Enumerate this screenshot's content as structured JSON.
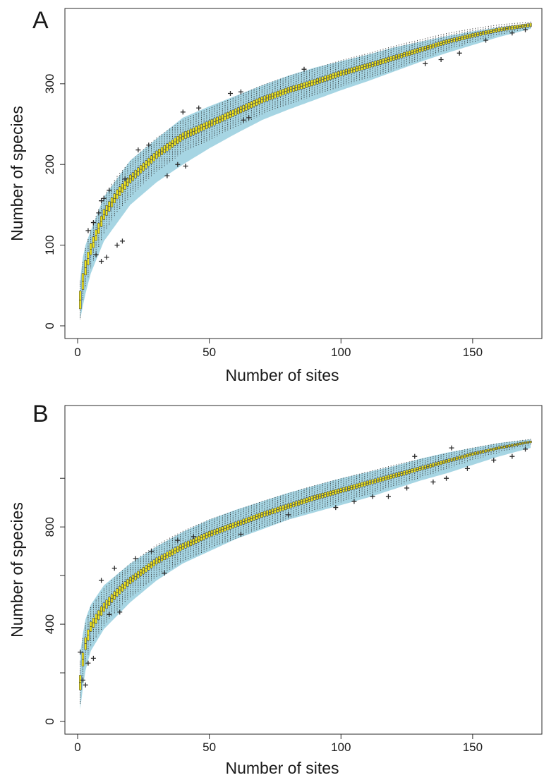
{
  "chart_data": [
    {
      "panel": "A",
      "type": "box",
      "xlabel": "Number of sites",
      "ylabel": "Number of species",
      "xlim": [
        0,
        172
      ],
      "ylim": [
        0,
        375
      ],
      "x_ticks": [
        0,
        50,
        100,
        150
      ],
      "y_ticks": [
        0,
        100,
        200,
        300
      ],
      "x_tick_labels": [
        "0",
        "50",
        "100",
        "150"
      ],
      "y_tick_labels": [
        "0",
        "100",
        "200",
        "300"
      ],
      "n_sites": 172,
      "median_at": [
        [
          1,
          32
        ],
        [
          2,
          55
        ],
        [
          3,
          72
        ],
        [
          5,
          95
        ],
        [
          10,
          138
        ],
        [
          15,
          163
        ],
        [
          20,
          182
        ],
        [
          30,
          212
        ],
        [
          40,
          235
        ],
        [
          50,
          250
        ],
        [
          60,
          265
        ],
        [
          70,
          280
        ],
        [
          80,
          292
        ],
        [
          90,
          302
        ],
        [
          100,
          313
        ],
        [
          110,
          322
        ],
        [
          120,
          332
        ],
        [
          130,
          342
        ],
        [
          140,
          352
        ],
        [
          150,
          360
        ],
        [
          160,
          367
        ],
        [
          172,
          373
        ]
      ],
      "envelope_upper": [
        [
          1,
          58
        ],
        [
          2,
          85
        ],
        [
          3,
          100
        ],
        [
          5,
          118
        ],
        [
          10,
          160
        ],
        [
          20,
          205
        ],
        [
          30,
          232
        ],
        [
          40,
          258
        ],
        [
          50,
          272
        ],
        [
          60,
          285
        ],
        [
          70,
          298
        ],
        [
          80,
          310
        ],
        [
          90,
          320
        ],
        [
          100,
          328
        ],
        [
          110,
          336
        ],
        [
          120,
          345
        ],
        [
          130,
          352
        ],
        [
          140,
          359
        ],
        [
          150,
          365
        ],
        [
          160,
          370
        ],
        [
          172,
          375
        ]
      ],
      "envelope_lower": [
        [
          1,
          8
        ],
        [
          2,
          25
        ],
        [
          3,
          40
        ],
        [
          5,
          65
        ],
        [
          10,
          105
        ],
        [
          20,
          150
        ],
        [
          30,
          178
        ],
        [
          40,
          200
        ],
        [
          50,
          220
        ],
        [
          60,
          238
        ],
        [
          70,
          255
        ],
        [
          80,
          268
        ],
        [
          90,
          280
        ],
        [
          100,
          292
        ],
        [
          110,
          303
        ],
        [
          120,
          315
        ],
        [
          130,
          327
        ],
        [
          140,
          338
        ],
        [
          150,
          348
        ],
        [
          160,
          358
        ],
        [
          172,
          368
        ]
      ],
      "iqr_halfwidth": [
        [
          1,
          11
        ],
        [
          5,
          7
        ],
        [
          20,
          5
        ],
        [
          60,
          4
        ],
        [
          120,
          3
        ],
        [
          172,
          2
        ]
      ],
      "whisker_halfwidth": [
        [
          1,
          24
        ],
        [
          5,
          24
        ],
        [
          20,
          22
        ],
        [
          60,
          19
        ],
        [
          120,
          15
        ],
        [
          172,
          4
        ]
      ],
      "outliers": [
        [
          4,
          118
        ],
        [
          6,
          128
        ],
        [
          8,
          140
        ],
        [
          9,
          155
        ],
        [
          10,
          158
        ],
        [
          12,
          168
        ],
        [
          18,
          182
        ],
        [
          23,
          218
        ],
        [
          27,
          224
        ],
        [
          40,
          265
        ],
        [
          46,
          270
        ],
        [
          58,
          288
        ],
        [
          62,
          290
        ],
        [
          86,
          318
        ],
        [
          7,
          88
        ],
        [
          9,
          80
        ],
        [
          11,
          85
        ],
        [
          15,
          100
        ],
        [
          17,
          105
        ],
        [
          34,
          186
        ],
        [
          38,
          200
        ],
        [
          41,
          198
        ],
        [
          63,
          255
        ],
        [
          65,
          258
        ],
        [
          132,
          325
        ],
        [
          138,
          330
        ],
        [
          145,
          338
        ],
        [
          155,
          354
        ],
        [
          165,
          363
        ],
        [
          170,
          367
        ]
      ]
    },
    {
      "panel": "B",
      "type": "box",
      "xlabel": "Number of sites",
      "ylabel": "Number of species",
      "xlim": [
        0,
        172
      ],
      "ylim": [
        0,
        1250
      ],
      "x_ticks": [
        0,
        50,
        100,
        150
      ],
      "y_ticks": [
        0,
        400,
        800
      ],
      "x_tick_labels": [
        "0",
        "50",
        "100",
        "150"
      ],
      "y_tick_labels": [
        "0",
        "400",
        "800"
      ],
      "n_sites": 172,
      "median_at": [
        [
          1,
          160
        ],
        [
          2,
          255
        ],
        [
          3,
          320
        ],
        [
          5,
          390
        ],
        [
          10,
          470
        ],
        [
          15,
          530
        ],
        [
          20,
          580
        ],
        [
          30,
          660
        ],
        [
          40,
          720
        ],
        [
          50,
          770
        ],
        [
          60,
          810
        ],
        [
          70,
          850
        ],
        [
          80,
          885
        ],
        [
          90,
          920
        ],
        [
          100,
          950
        ],
        [
          110,
          980
        ],
        [
          120,
          1010
        ],
        [
          130,
          1040
        ],
        [
          140,
          1070
        ],
        [
          150,
          1100
        ],
        [
          160,
          1125
        ],
        [
          172,
          1150
        ]
      ],
      "envelope_upper": [
        [
          1,
          280
        ],
        [
          2,
          360
        ],
        [
          3,
          420
        ],
        [
          5,
          480
        ],
        [
          10,
          560
        ],
        [
          20,
          650
        ],
        [
          30,
          720
        ],
        [
          40,
          780
        ],
        [
          50,
          830
        ],
        [
          60,
          870
        ],
        [
          70,
          905
        ],
        [
          80,
          940
        ],
        [
          90,
          970
        ],
        [
          100,
          1000
        ],
        [
          110,
          1025
        ],
        [
          120,
          1050
        ],
        [
          130,
          1080
        ],
        [
          140,
          1105
        ],
        [
          150,
          1125
        ],
        [
          160,
          1145
        ],
        [
          172,
          1160
        ]
      ],
      "envelope_lower": [
        [
          1,
          50
        ],
        [
          2,
          140
        ],
        [
          3,
          210
        ],
        [
          5,
          290
        ],
        [
          10,
          380
        ],
        [
          20,
          490
        ],
        [
          30,
          580
        ],
        [
          40,
          650
        ],
        [
          50,
          700
        ],
        [
          60,
          750
        ],
        [
          70,
          790
        ],
        [
          80,
          830
        ],
        [
          90,
          860
        ],
        [
          100,
          890
        ],
        [
          110,
          920
        ],
        [
          120,
          955
        ],
        [
          130,
          990
        ],
        [
          140,
          1020
        ],
        [
          150,
          1055
        ],
        [
          160,
          1090
        ],
        [
          172,
          1125
        ]
      ],
      "iqr_halfwidth": [
        [
          1,
          30
        ],
        [
          5,
          20
        ],
        [
          20,
          14
        ],
        [
          60,
          11
        ],
        [
          120,
          9
        ],
        [
          172,
          4
        ]
      ],
      "whisker_halfwidth": [
        [
          1,
          90
        ],
        [
          5,
          80
        ],
        [
          20,
          70
        ],
        [
          60,
          58
        ],
        [
          120,
          45
        ],
        [
          172,
          12
        ]
      ],
      "outliers": [
        [
          1,
          285
        ],
        [
          2,
          170
        ],
        [
          3,
          150
        ],
        [
          4,
          240
        ],
        [
          6,
          260
        ],
        [
          9,
          580
        ],
        [
          14,
          630
        ],
        [
          22,
          670
        ],
        [
          28,
          700
        ],
        [
          38,
          745
        ],
        [
          44,
          760
        ],
        [
          12,
          440
        ],
        [
          16,
          450
        ],
        [
          33,
          610
        ],
        [
          62,
          770
        ],
        [
          80,
          850
        ],
        [
          98,
          880
        ],
        [
          105,
          905
        ],
        [
          112,
          925
        ],
        [
          118,
          925
        ],
        [
          125,
          960
        ],
        [
          135,
          985
        ],
        [
          140,
          1000
        ],
        [
          148,
          1040
        ],
        [
          158,
          1075
        ],
        [
          165,
          1090
        ],
        [
          170,
          1120
        ],
        [
          128,
          1090
        ],
        [
          142,
          1125
        ]
      ]
    }
  ],
  "colors": {
    "envelope": "#a6d5e3",
    "box_fill": "#f2e61b",
    "ink": "#2a2a2a",
    "outlier": "#2a2a2a"
  },
  "panels": {
    "A": {
      "letter": "A"
    },
    "B": {
      "letter": "B"
    }
  }
}
